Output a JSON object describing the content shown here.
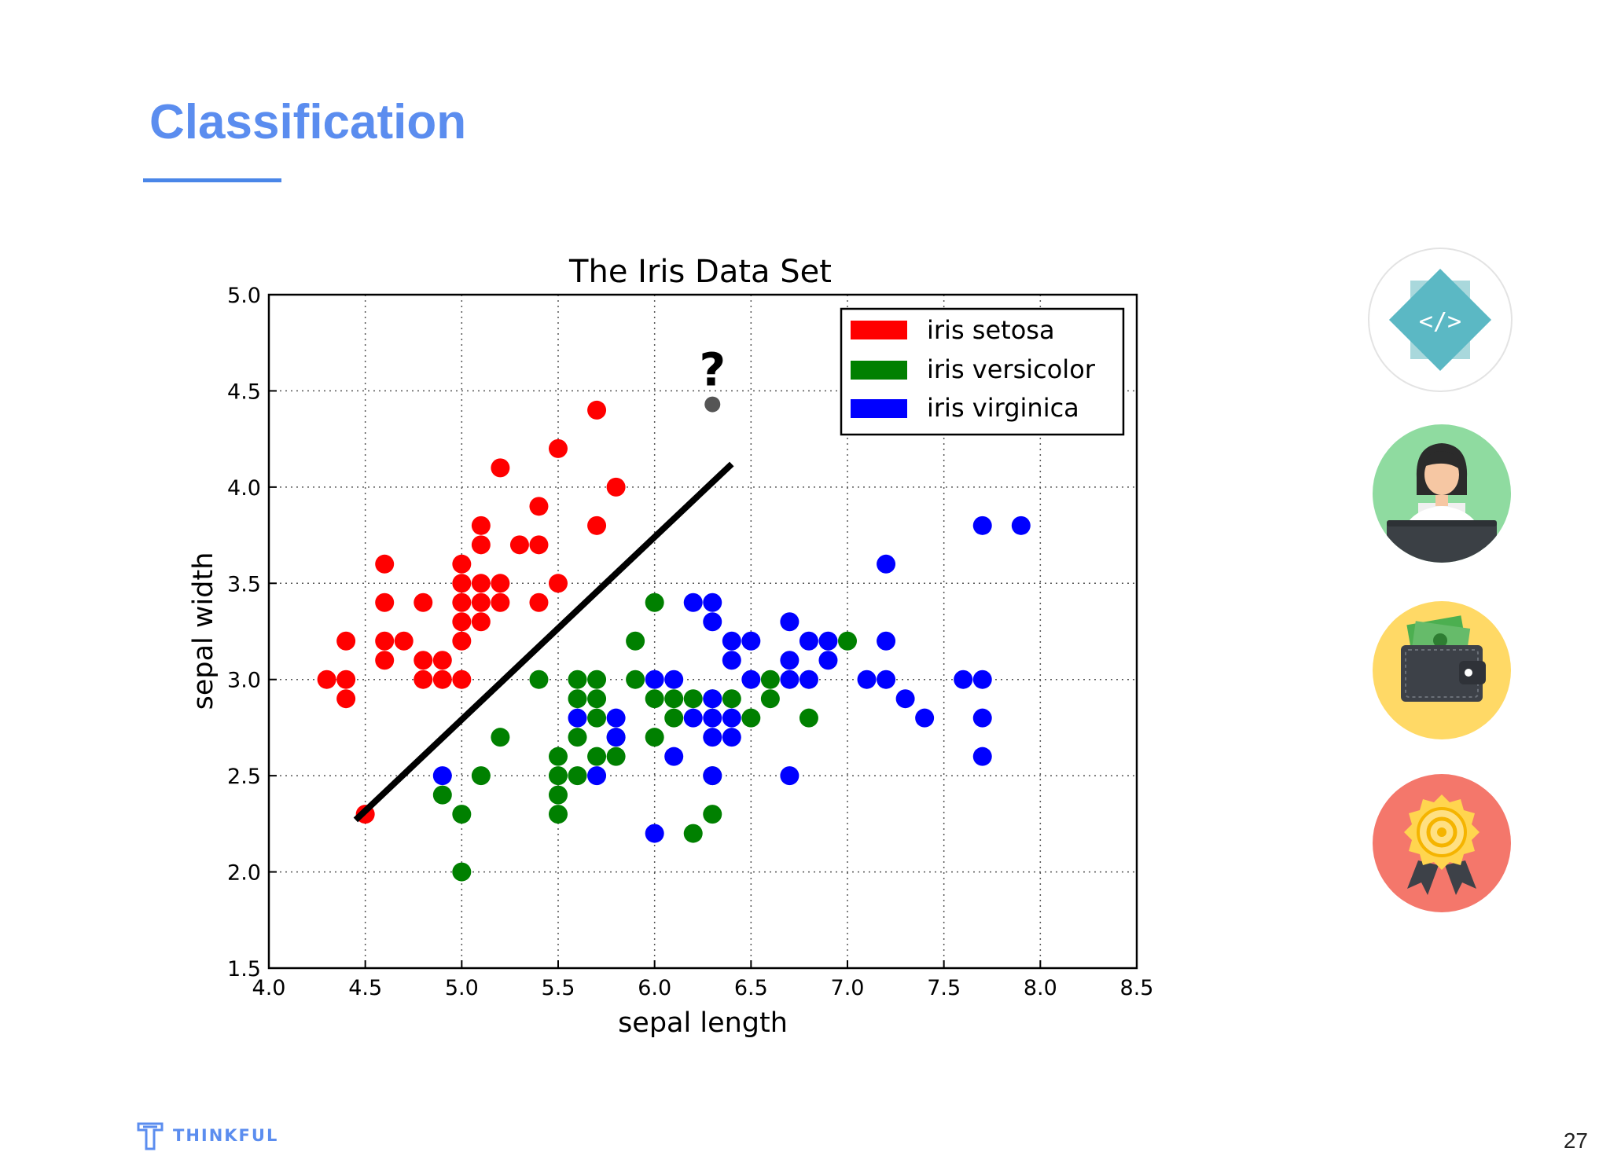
{
  "slide": {
    "title": "Classification",
    "page_number": "27",
    "brand_name": "THINKFUL"
  },
  "colors": {
    "accent": "#4a86e8",
    "setosa": "#ff0000",
    "versicolor": "#008000",
    "virginica": "#0000ff",
    "unknown_point": "#555555"
  },
  "side_icons": [
    "code-diamond-icon",
    "developer-person-icon",
    "wallet-icon",
    "award-badge-icon"
  ],
  "chart_data": {
    "type": "scatter",
    "title": "The Iris Data Set",
    "xlabel": "sepal length",
    "ylabel": "sepal width",
    "xlim": [
      4.0,
      8.5
    ],
    "ylim": [
      1.5,
      5.0
    ],
    "xticks": [
      "4.0",
      "4.5",
      "5.0",
      "5.5",
      "6.0",
      "6.5",
      "7.0",
      "7.5",
      "8.0",
      "8.5"
    ],
    "yticks": [
      "1.5",
      "2.0",
      "2.5",
      "3.0",
      "3.5",
      "4.0",
      "4.5",
      "5.0"
    ],
    "grid": true,
    "legend_position": "top-right",
    "series": [
      {
        "name": "iris setosa",
        "color": "#ff0000",
        "points": [
          [
            4.3,
            3.0
          ],
          [
            4.4,
            3.0
          ],
          [
            4.4,
            2.9
          ],
          [
            4.4,
            3.2
          ],
          [
            4.5,
            2.3
          ],
          [
            4.6,
            3.1
          ],
          [
            4.6,
            3.2
          ],
          [
            4.6,
            3.4
          ],
          [
            4.6,
            3.6
          ],
          [
            4.7,
            3.2
          ],
          [
            4.8,
            3.0
          ],
          [
            4.8,
            3.1
          ],
          [
            4.8,
            3.4
          ],
          [
            4.9,
            3.0
          ],
          [
            4.9,
            3.1
          ],
          [
            5.0,
            3.0
          ],
          [
            5.0,
            3.2
          ],
          [
            5.0,
            3.3
          ],
          [
            5.0,
            3.4
          ],
          [
            5.0,
            3.5
          ],
          [
            5.0,
            3.6
          ],
          [
            5.1,
            3.3
          ],
          [
            5.1,
            3.4
          ],
          [
            5.1,
            3.5
          ],
          [
            5.1,
            3.7
          ],
          [
            5.1,
            3.8
          ],
          [
            5.2,
            3.4
          ],
          [
            5.2,
            3.5
          ],
          [
            5.2,
            4.1
          ],
          [
            5.3,
            3.7
          ],
          [
            5.4,
            3.4
          ],
          [
            5.4,
            3.7
          ],
          [
            5.4,
            3.9
          ],
          [
            5.5,
            3.5
          ],
          [
            5.5,
            4.2
          ],
          [
            5.7,
            3.8
          ],
          [
            5.7,
            4.4
          ],
          [
            5.8,
            4.0
          ]
        ]
      },
      {
        "name": "iris versicolor",
        "color": "#008000",
        "points": [
          [
            4.9,
            2.4
          ],
          [
            5.0,
            2.0
          ],
          [
            5.0,
            2.3
          ],
          [
            5.1,
            2.5
          ],
          [
            5.2,
            2.7
          ],
          [
            5.4,
            3.0
          ],
          [
            5.5,
            2.3
          ],
          [
            5.5,
            2.4
          ],
          [
            5.5,
            2.5
          ],
          [
            5.5,
            2.6
          ],
          [
            5.6,
            2.5
          ],
          [
            5.6,
            2.7
          ],
          [
            5.6,
            2.9
          ],
          [
            5.6,
            3.0
          ],
          [
            5.7,
            2.6
          ],
          [
            5.7,
            2.8
          ],
          [
            5.7,
            2.9
          ],
          [
            5.7,
            3.0
          ],
          [
            5.8,
            2.6
          ],
          [
            5.8,
            2.7
          ],
          [
            5.9,
            3.0
          ],
          [
            5.9,
            3.2
          ],
          [
            6.0,
            2.7
          ],
          [
            6.0,
            2.9
          ],
          [
            6.0,
            3.4
          ],
          [
            6.1,
            2.8
          ],
          [
            6.1,
            2.9
          ],
          [
            6.2,
            2.2
          ],
          [
            6.2,
            2.9
          ],
          [
            6.3,
            2.3
          ],
          [
            6.3,
            2.5
          ],
          [
            6.3,
            2.9
          ],
          [
            6.4,
            2.9
          ],
          [
            6.5,
            2.8
          ],
          [
            6.6,
            2.9
          ],
          [
            6.6,
            3.0
          ],
          [
            6.8,
            2.8
          ],
          [
            7.0,
            3.2
          ]
        ]
      },
      {
        "name": "iris virginica",
        "color": "#0000ff",
        "points": [
          [
            4.9,
            2.5
          ],
          [
            5.6,
            2.8
          ],
          [
            5.7,
            2.5
          ],
          [
            5.8,
            2.7
          ],
          [
            5.8,
            2.8
          ],
          [
            6.0,
            2.2
          ],
          [
            6.0,
            3.0
          ],
          [
            6.1,
            2.6
          ],
          [
            6.1,
            3.0
          ],
          [
            6.2,
            2.8
          ],
          [
            6.2,
            3.4
          ],
          [
            6.3,
            2.5
          ],
          [
            6.3,
            2.7
          ],
          [
            6.3,
            2.8
          ],
          [
            6.3,
            2.9
          ],
          [
            6.3,
            3.3
          ],
          [
            6.3,
            3.4
          ],
          [
            6.4,
            2.7
          ],
          [
            6.4,
            2.8
          ],
          [
            6.4,
            3.1
          ],
          [
            6.4,
            3.2
          ],
          [
            6.5,
            3.0
          ],
          [
            6.5,
            3.2
          ],
          [
            6.7,
            2.5
          ],
          [
            6.7,
            3.0
          ],
          [
            6.7,
            3.1
          ],
          [
            6.7,
            3.3
          ],
          [
            6.8,
            3.0
          ],
          [
            6.8,
            3.2
          ],
          [
            6.9,
            3.1
          ],
          [
            6.9,
            3.2
          ],
          [
            7.1,
            3.0
          ],
          [
            7.2,
            3.0
          ],
          [
            7.2,
            3.2
          ],
          [
            7.2,
            3.6
          ],
          [
            7.3,
            2.9
          ],
          [
            7.4,
            2.8
          ],
          [
            7.6,
            3.0
          ],
          [
            7.7,
            2.6
          ],
          [
            7.7,
            2.8
          ],
          [
            7.7,
            3.0
          ],
          [
            7.7,
            3.8
          ],
          [
            7.9,
            3.8
          ]
        ]
      }
    ],
    "unknown_point": {
      "x": 6.3,
      "y": 4.43,
      "label": "?"
    },
    "decision_line": {
      "x1": 4.45,
      "y1": 2.27,
      "x2": 6.4,
      "y2": 4.12
    }
  }
}
